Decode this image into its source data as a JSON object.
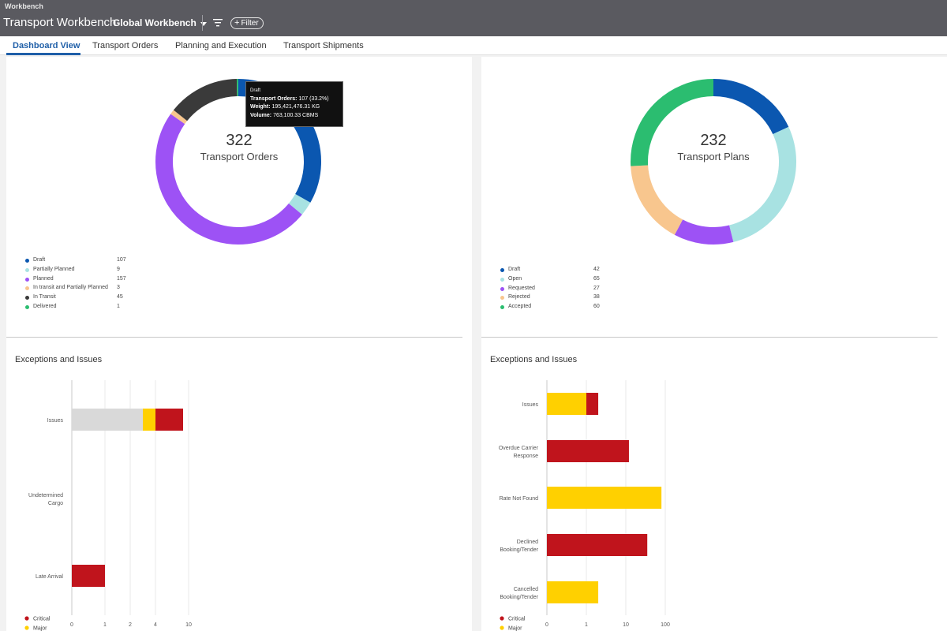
{
  "shell": {
    "caption": "Workbench",
    "app_title": "Transport Workbench",
    "variant": "Global Workbench",
    "filter_label": "Filter"
  },
  "tabs": [
    {
      "label": "Dashboard View",
      "active": true
    },
    {
      "label": "Transport Orders",
      "active": false
    },
    {
      "label": "Planning and Execution",
      "active": false
    },
    {
      "label": "Transport Shipments",
      "active": false
    }
  ],
  "left": {
    "donut": {
      "total": "322",
      "label": "Transport Orders",
      "segments": [
        {
          "name": "Draft",
          "value": 107,
          "color": "#0b57b0"
        },
        {
          "name": "Partially Planned",
          "value": 9,
          "color": "#a8e2e2"
        },
        {
          "name": "Planned",
          "value": 157,
          "color": "#9d52f5"
        },
        {
          "name": "In transit and Partially Planned",
          "value": 3,
          "color": "#f8c68e"
        },
        {
          "name": "In Transit",
          "value": 45,
          "color": "#3a3a3a"
        },
        {
          "name": "Delivered",
          "value": 1,
          "color": "#2bbd70"
        }
      ]
    },
    "legend_counts": [
      "107",
      "9",
      "157",
      "3",
      "45",
      "1"
    ],
    "tooltip": {
      "title": "Draft",
      "orders_label": "Transport Orders:",
      "orders_value": "107 (33.2%)",
      "weight_label": "Weight:",
      "weight_value": "195,421,476.31 KG",
      "volume_label": "Volume:",
      "volume_value": "763,100.33 CBMS"
    },
    "exceptions": {
      "title": "Exceptions and Issues",
      "chart_data": {
        "type": "bar",
        "orientation": "horizontal",
        "stacked": true,
        "categories": [
          "Issues",
          "Undetermined Cargo",
          "Late Arrival"
        ],
        "x_ticks": [
          "0",
          "1",
          "2",
          "4",
          "10"
        ],
        "series": [
          {
            "name": "",
            "color": "#d9d9d9",
            "values": [
              3,
              0,
              0
            ]
          },
          {
            "name": "Major",
            "color": "#ffd000",
            "values": [
              1,
              0,
              0
            ]
          },
          {
            "name": "Critical",
            "color": "#c0141c",
            "values": [
              5,
              0,
              1
            ]
          }
        ],
        "legend": [
          {
            "name": "Critical",
            "color": "#c0141c"
          },
          {
            "name": "Major",
            "color": "#ffd000"
          }
        ]
      }
    }
  },
  "right": {
    "donut": {
      "total": "232",
      "label": "Transport Plans",
      "segments": [
        {
          "name": "Draft",
          "value": 42,
          "color": "#0b57b0"
        },
        {
          "name": "Open",
          "value": 65,
          "color": "#a8e2e2"
        },
        {
          "name": "Requested",
          "value": 27,
          "color": "#9d52f5"
        },
        {
          "name": "Rejected",
          "value": 38,
          "color": "#f8c68e"
        },
        {
          "name": "Accepted",
          "value": 60,
          "color": "#2bbd70"
        }
      ]
    },
    "legend_counts": [
      "42",
      "65",
      "27",
      "38",
      "60"
    ],
    "exceptions": {
      "title": "Exceptions and Issues",
      "chart_data": {
        "type": "bar",
        "orientation": "horizontal",
        "stacked": true,
        "scale": "log",
        "categories": [
          "Issues",
          "Overdue Carrier Response",
          "Rate Not Found",
          "Declined Booking/Tender",
          "Cancelled Booking/Tender"
        ],
        "x_ticks": [
          "0",
          "1",
          "10",
          "100"
        ],
        "series": [
          {
            "name": "Major",
            "color": "#ffd000",
            "values": [
              1,
              0,
              80,
              0,
              2
            ]
          },
          {
            "name": "Critical",
            "color": "#c0141c",
            "values": [
              1,
              12,
              0,
              35,
              0
            ]
          }
        ],
        "legend": [
          {
            "name": "Critical",
            "color": "#c0141c"
          },
          {
            "name": "Major",
            "color": "#ffd000"
          }
        ]
      }
    }
  }
}
